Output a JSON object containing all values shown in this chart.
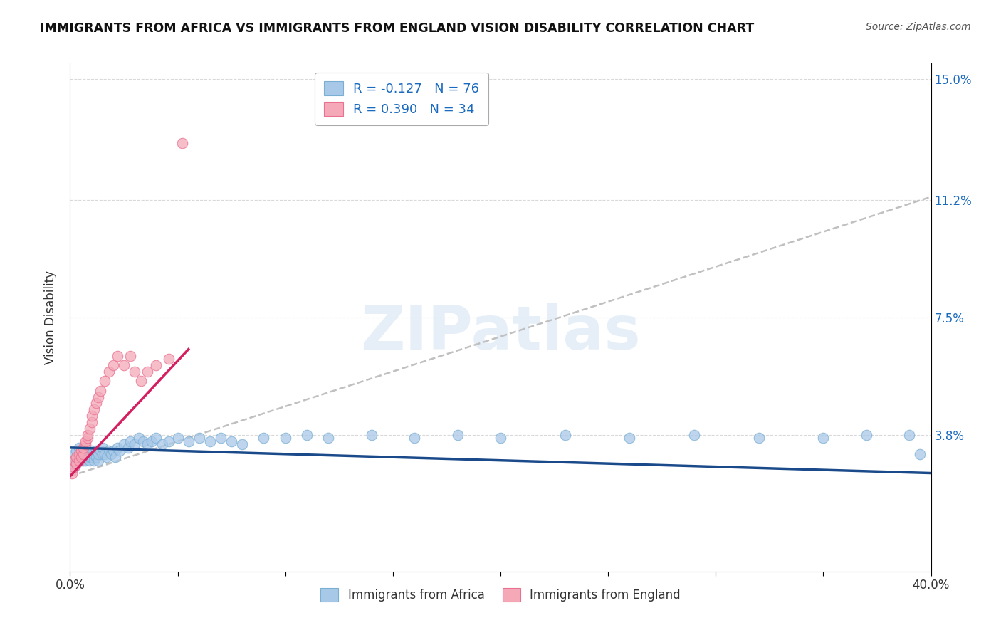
{
  "title": "IMMIGRANTS FROM AFRICA VS IMMIGRANTS FROM ENGLAND VISION DISABILITY CORRELATION CHART",
  "source": "Source: ZipAtlas.com",
  "ylabel": "Vision Disability",
  "xlim": [
    0.0,
    0.4
  ],
  "ylim": [
    -0.005,
    0.155
  ],
  "ytick_positions": [
    0.038,
    0.075,
    0.112,
    0.15
  ],
  "ytick_labels": [
    "3.8%",
    "7.5%",
    "11.2%",
    "15.0%"
  ],
  "legend_africa_R": "-0.127",
  "legend_africa_N": "76",
  "legend_england_R": "0.390",
  "legend_england_N": "34",
  "africa_color": "#a8c8e8",
  "africa_edge_color": "#7aafd4",
  "england_color": "#f4a8b8",
  "england_edge_color": "#e87090",
  "africa_line_color": "#1a4a8a",
  "england_line_color": "#d42060",
  "dash_line_color": "#c0c0c0",
  "watermark": "ZIPatlas",
  "africa_x": [
    0.001,
    0.002,
    0.002,
    0.003,
    0.003,
    0.003,
    0.004,
    0.004,
    0.004,
    0.005,
    0.005,
    0.005,
    0.006,
    0.006,
    0.007,
    0.007,
    0.007,
    0.008,
    0.008,
    0.008,
    0.009,
    0.009,
    0.01,
    0.01,
    0.01,
    0.011,
    0.011,
    0.012,
    0.012,
    0.013,
    0.013,
    0.014,
    0.015,
    0.015,
    0.016,
    0.017,
    0.018,
    0.019,
    0.02,
    0.021,
    0.022,
    0.023,
    0.025,
    0.027,
    0.028,
    0.03,
    0.032,
    0.034,
    0.036,
    0.038,
    0.04,
    0.043,
    0.046,
    0.05,
    0.055,
    0.06,
    0.065,
    0.07,
    0.075,
    0.08,
    0.09,
    0.1,
    0.11,
    0.12,
    0.14,
    0.16,
    0.18,
    0.2,
    0.23,
    0.26,
    0.29,
    0.32,
    0.35,
    0.37,
    0.39,
    0.395
  ],
  "africa_y": [
    0.03,
    0.032,
    0.028,
    0.03,
    0.033,
    0.029,
    0.031,
    0.03,
    0.034,
    0.03,
    0.032,
    0.033,
    0.031,
    0.03,
    0.032,
    0.031,
    0.03,
    0.033,
    0.032,
    0.031,
    0.03,
    0.031,
    0.032,
    0.031,
    0.033,
    0.03,
    0.032,
    0.031,
    0.033,
    0.03,
    0.032,
    0.033,
    0.032,
    0.034,
    0.032,
    0.031,
    0.033,
    0.032,
    0.033,
    0.031,
    0.034,
    0.033,
    0.035,
    0.034,
    0.036,
    0.035,
    0.037,
    0.036,
    0.035,
    0.036,
    0.037,
    0.035,
    0.036,
    0.037,
    0.036,
    0.037,
    0.036,
    0.037,
    0.036,
    0.035,
    0.037,
    0.037,
    0.038,
    0.037,
    0.038,
    0.037,
    0.038,
    0.037,
    0.038,
    0.037,
    0.038,
    0.037,
    0.037,
    0.038,
    0.038,
    0.032
  ],
  "england_x": [
    0.001,
    0.002,
    0.002,
    0.003,
    0.003,
    0.004,
    0.004,
    0.005,
    0.005,
    0.006,
    0.006,
    0.007,
    0.007,
    0.008,
    0.008,
    0.009,
    0.01,
    0.01,
    0.011,
    0.012,
    0.013,
    0.014,
    0.016,
    0.018,
    0.02,
    0.022,
    0.025,
    0.028,
    0.03,
    0.033,
    0.036,
    0.04,
    0.046,
    0.052
  ],
  "england_y": [
    0.026,
    0.028,
    0.03,
    0.029,
    0.031,
    0.03,
    0.032,
    0.031,
    0.033,
    0.032,
    0.034,
    0.035,
    0.036,
    0.037,
    0.038,
    0.04,
    0.042,
    0.044,
    0.046,
    0.048,
    0.05,
    0.052,
    0.055,
    0.058,
    0.06,
    0.063,
    0.06,
    0.063,
    0.058,
    0.055,
    0.058,
    0.06,
    0.062,
    0.13
  ],
  "africa_trend_x": [
    0.0,
    0.4
  ],
  "africa_trend_y": [
    0.034,
    0.026
  ],
  "england_trend_x": [
    0.0,
    0.055
  ],
  "england_trend_y": [
    0.025,
    0.065
  ],
  "dash_trend_x": [
    0.0,
    0.4
  ],
  "dash_trend_y": [
    0.025,
    0.113
  ]
}
